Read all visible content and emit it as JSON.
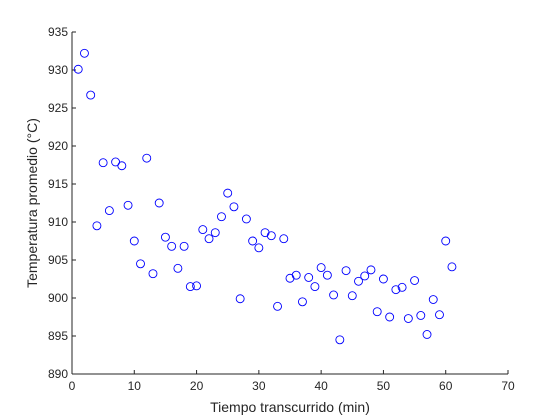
{
  "chart_data": {
    "type": "scatter",
    "title": "",
    "xlabel": "Tiempo transcurrido (min)",
    "ylabel": "Temperatura promedio (°C)",
    "xlim": [
      0,
      70
    ],
    "ylim": [
      890,
      935
    ],
    "xticks": [
      0,
      10,
      20,
      30,
      40,
      50,
      60,
      70
    ],
    "yticks": [
      890,
      895,
      900,
      905,
      910,
      915,
      920,
      925,
      930,
      935
    ],
    "grid": false,
    "legend": "none",
    "marker": "open-circle",
    "marker_color": "#0000ff",
    "series": [
      {
        "x": [
          1,
          2,
          3,
          4,
          5,
          6,
          7,
          8,
          9,
          10,
          11,
          12,
          13,
          14,
          15,
          16,
          17,
          18,
          19,
          20,
          21,
          22,
          23,
          24,
          25,
          26,
          27,
          28,
          29,
          30,
          31,
          32,
          33,
          34,
          35,
          36,
          37,
          38,
          39,
          40,
          41,
          42,
          43,
          44,
          45,
          46,
          47,
          48,
          49,
          50,
          51,
          52,
          53,
          54,
          55,
          56,
          57,
          58,
          59,
          60,
          61
        ],
        "y": [
          930.1,
          932.2,
          926.7,
          909.5,
          917.8,
          911.5,
          917.9,
          917.4,
          912.2,
          907.5,
          904.5,
          918.4,
          903.2,
          912.5,
          908.0,
          906.8,
          903.9,
          906.8,
          901.5,
          901.6,
          909.0,
          907.8,
          908.6,
          910.7,
          913.8,
          912.0,
          899.9,
          910.4,
          907.5,
          906.6,
          908.6,
          908.2,
          898.9,
          907.8,
          902.6,
          903.0,
          899.5,
          902.7,
          901.5,
          904.0,
          903.0,
          900.4,
          894.5,
          903.6,
          900.3,
          902.2,
          902.9,
          903.7,
          898.2,
          902.5,
          897.5,
          901.1,
          901.4,
          897.3,
          902.3,
          897.7,
          895.2,
          899.8,
          897.8,
          907.5,
          904.1
        ]
      }
    ]
  }
}
